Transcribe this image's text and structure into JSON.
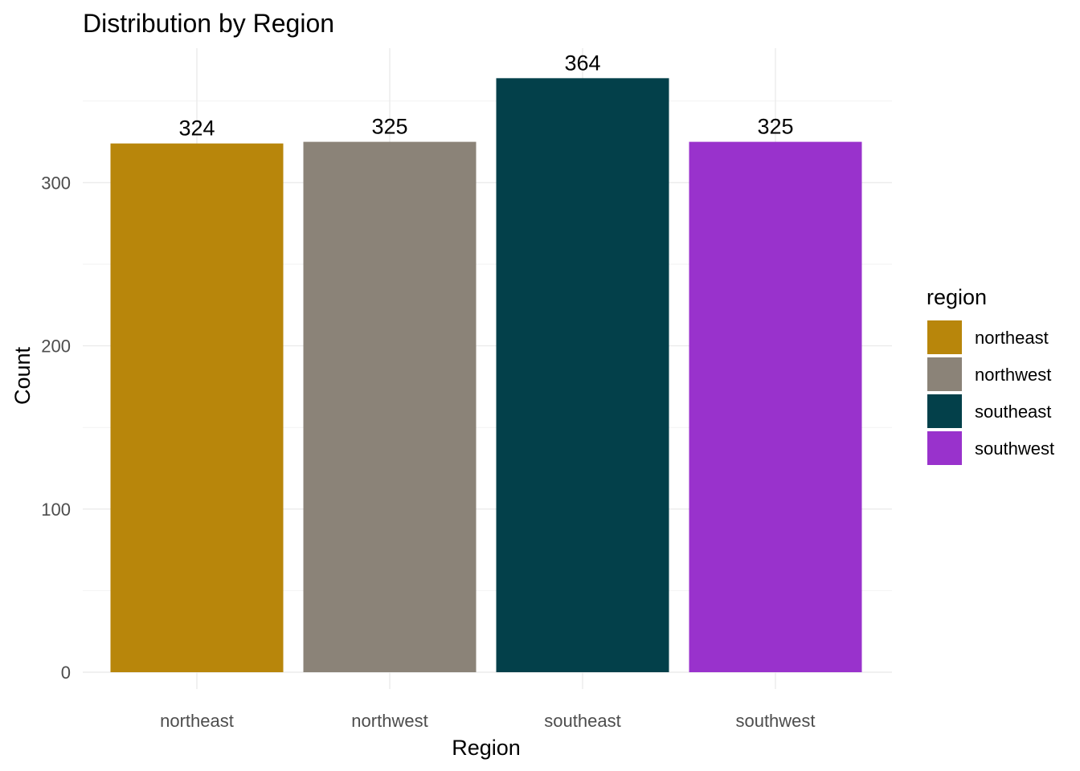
{
  "chart_data": {
    "type": "bar",
    "title": "Distribution by Region",
    "xlabel": "Region",
    "ylabel": "Count",
    "categories": [
      "northeast",
      "northwest",
      "southeast",
      "southwest"
    ],
    "values": [
      324,
      325,
      364,
      325
    ],
    "data_labels": [
      "324",
      "325",
      "364",
      "325"
    ],
    "colors": [
      "#B8860B",
      "#8B8378",
      "#03404A",
      "#9932CC"
    ],
    "yticks": [
      0,
      100,
      200,
      300
    ],
    "ytick_labels": [
      "0",
      "100",
      "200",
      "300"
    ],
    "ylim": [
      0,
      382
    ],
    "grid": true,
    "legend": {
      "title": "region",
      "position": "right",
      "entries": [
        "northeast",
        "northwest",
        "southeast",
        "southwest"
      ]
    }
  }
}
